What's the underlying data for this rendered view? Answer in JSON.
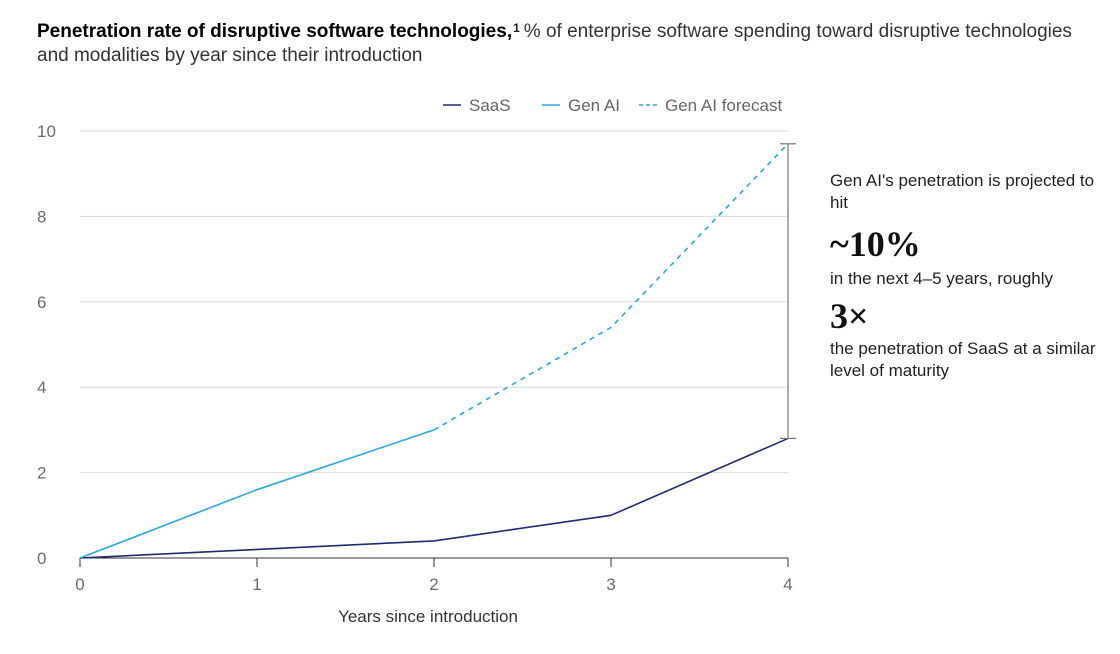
{
  "title": {
    "bold": "Penetration rate of disruptive software technologies,",
    "footnote": "1",
    "subtitle": "% of enterprise software spending toward disruptive technologies and modalities by year since their introduction"
  },
  "legend": [
    {
      "label": "SaaS",
      "color": "#1f2b6e",
      "style": "solid"
    },
    {
      "label": "Gen AI",
      "color": "#2aa7dc",
      "style": "solid"
    },
    {
      "label": "Gen AI forecast",
      "color": "#2aa7dc",
      "style": "dashed"
    }
  ],
  "annotation": {
    "line1": "Gen AI's penetration is projected to hit",
    "big1": "~10%",
    "line2": "in the next 4–5 years, roughly",
    "big2": "3×",
    "line3": "the penetration of SaaS at a similar level of maturity"
  },
  "chart_data": {
    "type": "line",
    "xlabel": "Years since introduction",
    "ylabel": "",
    "xlim": [
      0,
      4
    ],
    "ylim": [
      0,
      10
    ],
    "xticks": [
      0,
      1,
      2,
      3,
      4
    ],
    "yticks": [
      0,
      2,
      4,
      6,
      8,
      10
    ],
    "grid": "horizontal",
    "legend_position": "top-right",
    "series": [
      {
        "name": "SaaS",
        "color": "#1f2b6e",
        "dash": false,
        "x": [
          0,
          1,
          2,
          3,
          4
        ],
        "y": [
          0,
          0.2,
          0.4,
          1.0,
          2.8
        ]
      },
      {
        "name": "Gen AI",
        "color": "#2aa7dc",
        "dash": false,
        "x": [
          0,
          1,
          2
        ],
        "y": [
          0,
          1.6,
          3.0
        ]
      },
      {
        "name": "Gen AI forecast",
        "color": "#2aa7dc",
        "dash": true,
        "x": [
          2,
          3,
          4
        ],
        "y": [
          3.0,
          5.4,
          9.7
        ]
      }
    ]
  }
}
